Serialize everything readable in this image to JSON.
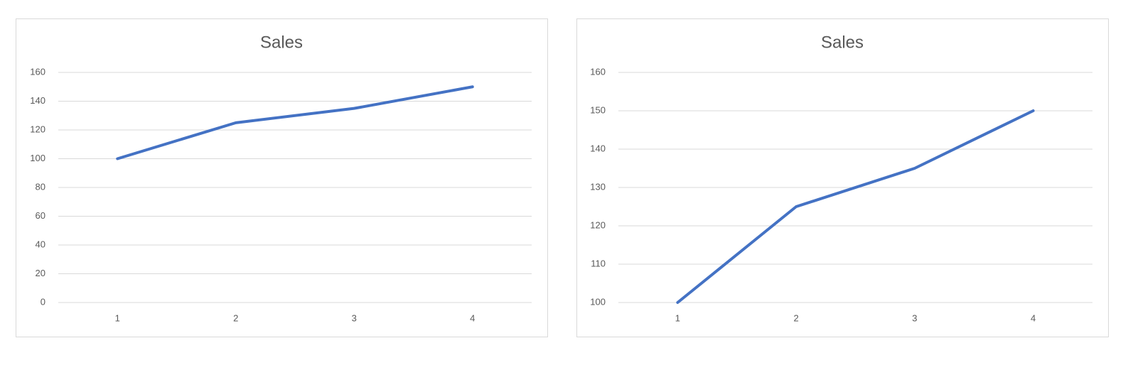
{
  "chart_data": [
    {
      "type": "line",
      "title": "Sales",
      "categories": [
        "1",
        "2",
        "3",
        "4"
      ],
      "values": [
        100,
        125,
        135,
        150
      ],
      "color": "#4472c4",
      "ylim": [
        0,
        160
      ],
      "yticks": [
        0,
        20,
        40,
        60,
        80,
        100,
        120,
        140,
        160
      ],
      "grid": true
    },
    {
      "type": "line",
      "title": "Sales",
      "categories": [
        "1",
        "2",
        "3",
        "4"
      ],
      "values": [
        100,
        125,
        135,
        150
      ],
      "color": "#4472c4",
      "ylim": [
        100,
        160
      ],
      "yticks": [
        100,
        110,
        120,
        130,
        140,
        150,
        160
      ],
      "grid": true
    }
  ]
}
